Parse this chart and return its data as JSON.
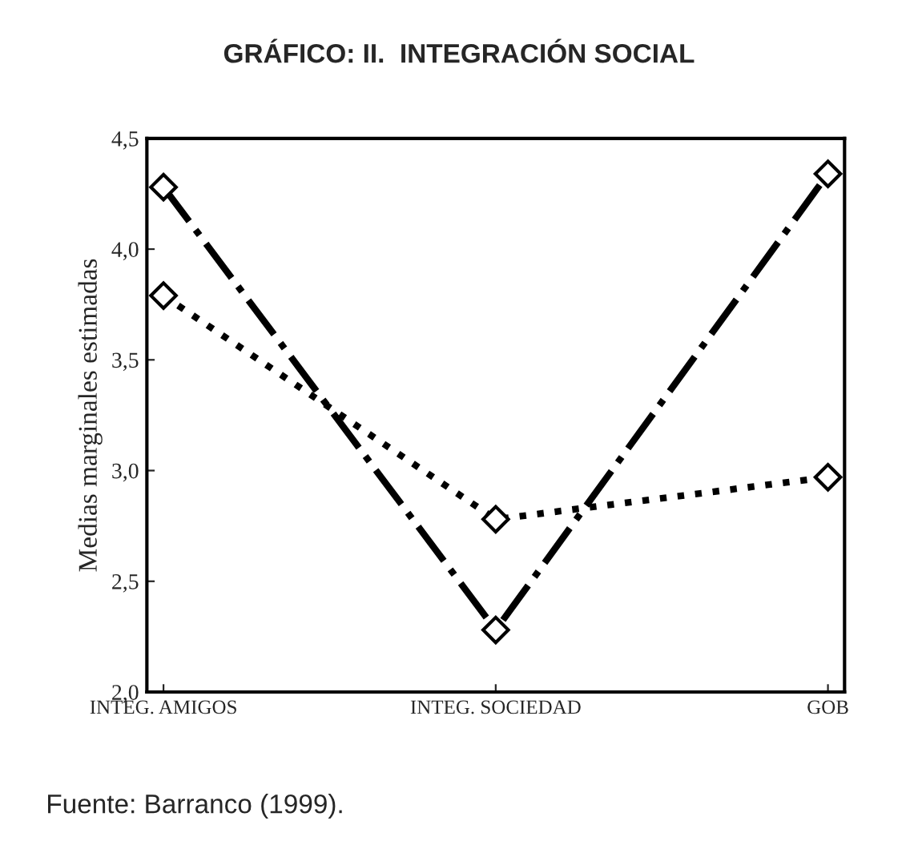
{
  "chart_data": {
    "type": "line",
    "title": "GRÁFICO: II.  INTEGRACIÓN SOCIAL",
    "ylabel": "Medias marginales estimadas",
    "categories": [
      "INTEG. AMIGOS",
      "INTEG. SOCIEDAD",
      "GOB"
    ],
    "series": [
      {
        "color": "#000000",
        "values": [
          4.28,
          2.28,
          4.34
        ],
        "line_style": "dashdot"
      },
      {
        "color": "#000000",
        "values": [
          3.79,
          2.78,
          2.97
        ],
        "line_style": "dotted"
      }
    ],
    "marker": "diamond",
    "ylim": [
      2.0,
      4.5
    ],
    "yticks": [
      {
        "value": 2.0,
        "label": "2,0"
      },
      {
        "value": 2.5,
        "label": "2,5"
      },
      {
        "value": 3.0,
        "label": "3,0"
      },
      {
        "value": 3.5,
        "label": "3,5"
      },
      {
        "value": 4.0,
        "label": "4,0"
      },
      {
        "value": 4.5,
        "label": "4,5"
      }
    ],
    "grid": false,
    "legend": false,
    "annotations": [
      "Fuente: Barranco (1999)."
    ]
  }
}
